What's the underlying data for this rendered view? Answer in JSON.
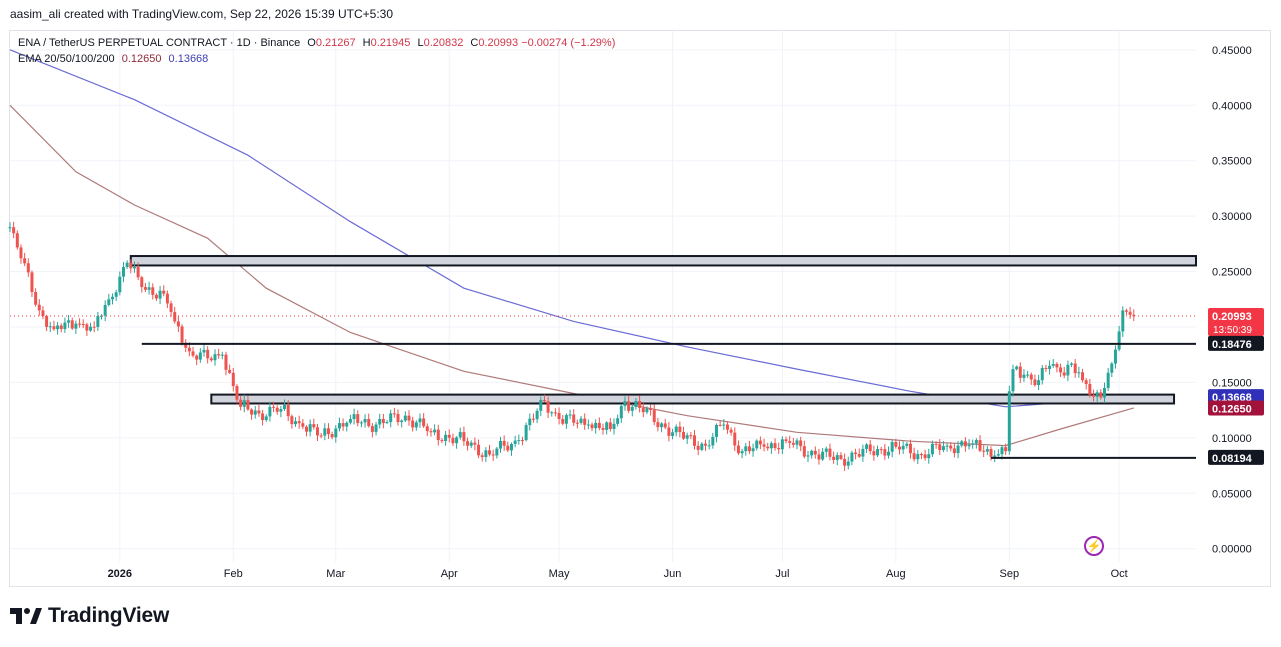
{
  "header": {
    "created_text": "aasim_ali created with TradingView.com, Sep 22, 2026 15:39 UTC+5:30"
  },
  "legend": {
    "symbol": "ENA / TetherUS PERPETUAL CONTRACT · 1D · Binance",
    "o_label": "O",
    "o": "0.21267",
    "h_label": "H",
    "h": "0.21945",
    "l_label": "L",
    "l": "0.20832",
    "c_label": "C",
    "c": "0.20993",
    "change": "−0.00274 (−1.29%)",
    "ema_label": "EMA 20/50/100/200",
    "ema_a": "0.12650",
    "ema_b": "0.13668"
  },
  "brand": {
    "name": "TradingView",
    "icon": "tradingview-logo-icon"
  },
  "alert_icon": "lightning-icon",
  "colors": {
    "up": "#26a69a",
    "down": "#ef5350",
    "ema_slow": "#b07a7a",
    "ema_fast": "#6b6bd6",
    "price_badge": "#f23645",
    "ema_badge_blue": "#3030b8",
    "ema_badge_red": "#a3123a",
    "level_badge": "#131722"
  },
  "chart_data": {
    "type": "candlestick",
    "y_axis": {
      "min": -0.012,
      "max": 0.467,
      "ticks": [
        "0.45000",
        "0.40000",
        "0.35000",
        "0.30000",
        "0.25000",
        "0.20000",
        "0.15000",
        "0.10000",
        "0.05000",
        "0.00000"
      ],
      "tick_values": [
        0.45,
        0.4,
        0.35,
        0.3,
        0.25,
        0.2,
        0.15,
        0.1,
        0.05,
        0.0
      ]
    },
    "x_axis": {
      "start": "2025-12-02",
      "end": "2026-10-22",
      "labels": [
        {
          "text": "2026",
          "date": "2026-01-01",
          "bold": true
        },
        {
          "text": "Feb",
          "date": "2026-02-01"
        },
        {
          "text": "Mar",
          "date": "2026-03-01"
        },
        {
          "text": "Apr",
          "date": "2026-04-01"
        },
        {
          "text": "May",
          "date": "2026-05-01"
        },
        {
          "text": "Jun",
          "date": "2026-06-01"
        },
        {
          "text": "Jul",
          "date": "2026-07-01"
        },
        {
          "text": "Aug",
          "date": "2026-08-01"
        },
        {
          "text": "Sep",
          "date": "2026-09-01"
        },
        {
          "text": "Oct",
          "date": "2026-10-01"
        }
      ]
    },
    "close_anchors": [
      [
        "2025-12-02",
        0.29
      ],
      [
        "2025-12-05",
        0.262
      ],
      [
        "2025-12-10",
        0.215
      ],
      [
        "2025-12-14",
        0.198
      ],
      [
        "2025-12-20",
        0.203
      ],
      [
        "2025-12-25",
        0.2
      ],
      [
        "2025-12-29",
        0.225
      ],
      [
        "2026-01-03",
        0.258
      ],
      [
        "2026-01-07",
        0.236
      ],
      [
        "2026-01-13",
        0.23
      ],
      [
        "2026-01-16",
        0.205
      ],
      [
        "2026-01-20",
        0.178
      ],
      [
        "2026-01-26",
        0.17
      ],
      [
        "2026-01-29",
        0.175
      ],
      [
        "2026-02-03",
        0.128
      ],
      [
        "2026-02-08",
        0.122
      ],
      [
        "2026-02-14",
        0.126
      ],
      [
        "2026-02-20",
        0.11
      ],
      [
        "2026-02-25",
        0.102
      ],
      [
        "2026-03-05",
        0.117
      ],
      [
        "2026-03-12",
        0.112
      ],
      [
        "2026-03-20",
        0.12
      ],
      [
        "2026-03-27",
        0.105
      ],
      [
        "2026-04-05",
        0.097
      ],
      [
        "2026-04-12",
        0.085
      ],
      [
        "2026-04-20",
        0.098
      ],
      [
        "2026-04-27",
        0.133
      ],
      [
        "2026-05-01",
        0.117
      ],
      [
        "2026-05-09",
        0.112
      ],
      [
        "2026-05-15",
        0.108
      ],
      [
        "2026-05-19",
        0.133
      ],
      [
        "2026-05-23",
        0.127
      ],
      [
        "2026-06-01",
        0.105
      ],
      [
        "2026-06-10",
        0.093
      ],
      [
        "2026-06-15",
        0.112
      ],
      [
        "2026-06-20",
        0.088
      ],
      [
        "2026-06-26",
        0.092
      ],
      [
        "2026-07-02",
        0.097
      ],
      [
        "2026-07-10",
        0.085
      ],
      [
        "2026-07-17",
        0.081
      ],
      [
        "2026-07-25",
        0.088
      ],
      [
        "2026-08-01",
        0.092
      ],
      [
        "2026-08-08",
        0.085
      ],
      [
        "2026-08-15",
        0.093
      ],
      [
        "2026-08-22",
        0.095
      ],
      [
        "2026-08-28",
        0.084
      ],
      [
        "2026-08-31",
        0.088
      ],
      [
        "2026-09-01",
        0.142
      ],
      [
        "2026-09-02",
        0.162
      ],
      [
        "2026-09-05",
        0.157
      ],
      [
        "2026-09-09",
        0.152
      ],
      [
        "2026-09-12",
        0.165
      ],
      [
        "2026-09-15",
        0.159
      ],
      [
        "2026-09-18",
        0.167
      ],
      [
        "2026-09-21",
        0.152
      ],
      [
        "2026-09-24",
        0.137
      ],
      [
        "2026-09-27",
        0.145
      ],
      [
        "2026-09-29",
        0.167
      ],
      [
        "2026-10-01",
        0.196
      ],
      [
        "2026-10-02",
        0.215
      ],
      [
        "2026-10-04",
        0.211
      ],
      [
        "2026-10-05",
        0.21
      ]
    ],
    "ema_200": [
      [
        "2025-12-02",
        0.45
      ],
      [
        "2026-01-05",
        0.405
      ],
      [
        "2026-02-05",
        0.355
      ],
      [
        "2026-03-05",
        0.295
      ],
      [
        "2026-04-05",
        0.235
      ],
      [
        "2026-05-05",
        0.205
      ],
      [
        "2026-06-05",
        0.182
      ],
      [
        "2026-07-05",
        0.162
      ],
      [
        "2026-08-05",
        0.142
      ],
      [
        "2026-08-31",
        0.128
      ],
      [
        "2026-09-20",
        0.133
      ],
      [
        "2026-10-05",
        0.137
      ]
    ],
    "ema_100": [
      [
        "2025-12-02",
        0.4
      ],
      [
        "2025-12-20",
        0.34
      ],
      [
        "2026-01-05",
        0.31
      ],
      [
        "2026-01-25",
        0.28
      ],
      [
        "2026-02-10",
        0.235
      ],
      [
        "2026-03-05",
        0.195
      ],
      [
        "2026-04-05",
        0.16
      ],
      [
        "2026-05-05",
        0.14
      ],
      [
        "2026-06-05",
        0.12
      ],
      [
        "2026-07-05",
        0.105
      ],
      [
        "2026-08-05",
        0.097
      ],
      [
        "2026-08-31",
        0.093
      ],
      [
        "2026-09-15",
        0.108
      ],
      [
        "2026-10-05",
        0.127
      ]
    ],
    "zones": [
      {
        "from": "2026-01-04",
        "to": "2026-10-22",
        "low": 0.2555,
        "high": 0.264
      },
      {
        "from": "2026-01-26",
        "to": "2026-10-16",
        "low": 0.131,
        "high": 0.139
      }
    ],
    "levels": [
      {
        "from": "2026-01-07",
        "to": "2026-10-22",
        "value": 0.18476
      },
      {
        "from": "2026-08-27",
        "to": "2026-10-22",
        "value": 0.08194
      }
    ],
    "price_tags": [
      {
        "value": 0.20993,
        "text": "0.20993",
        "subtext": "13:50:39",
        "color": "#f23645"
      },
      {
        "value": 0.18476,
        "text": "0.18476",
        "color": "#131722"
      },
      {
        "value": 0.13668,
        "text": "0.13668",
        "color": "#3030b8"
      },
      {
        "value": 0.1265,
        "text": "0.12650",
        "color": "#a3123a"
      },
      {
        "value": 0.08194,
        "text": "0.08194",
        "color": "#131722"
      }
    ]
  }
}
